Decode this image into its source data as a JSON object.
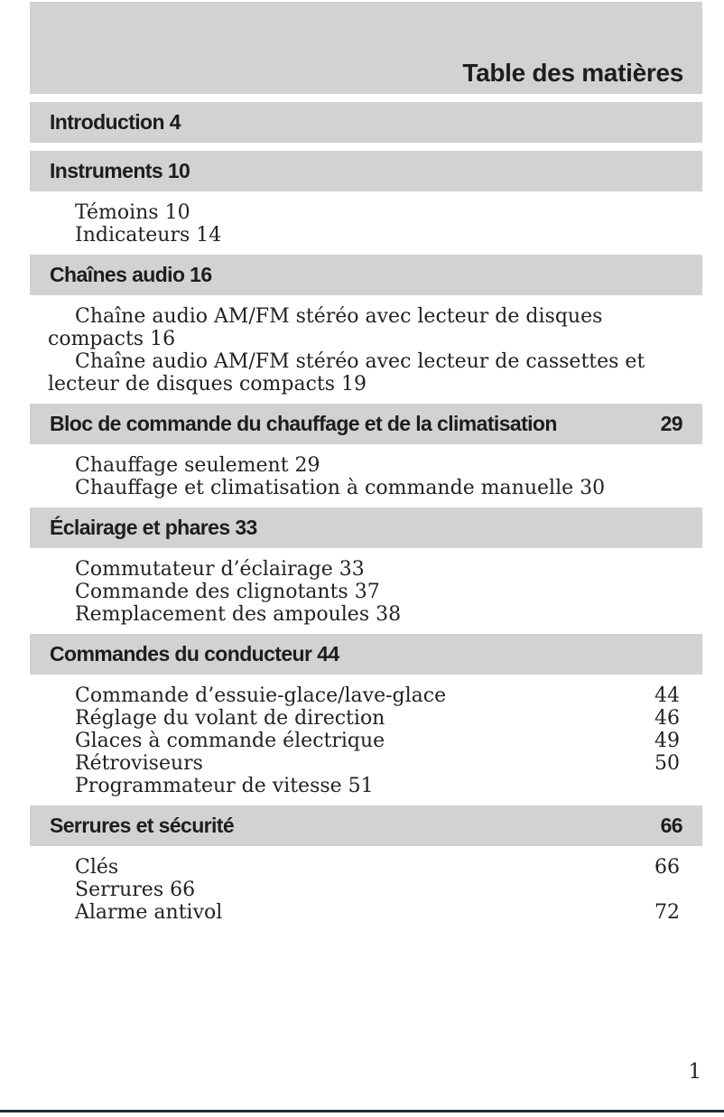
{
  "theme": {
    "bar_bg": "#d2d2d2",
    "ink": "#1d1d1b",
    "rule": "#262b33"
  },
  "toc": {
    "title": "Table des matières",
    "sections": [
      {
        "heading": {
          "text": "Introduction 4",
          "page": ""
        },
        "items": []
      },
      {
        "heading": {
          "text": "Instruments 10",
          "page": ""
        },
        "items": [
          {
            "type": "inline",
            "lines": [
              "Témoins 10"
            ]
          },
          {
            "type": "inline",
            "lines": [
              "Indicateurs 14"
            ]
          }
        ]
      },
      {
        "heading": {
          "text": "Chaînes audio 16",
          "page": ""
        },
        "items": [
          {
            "type": "inline",
            "lines": [
              "Chaîne audio AM/FM stéréo avec lecteur de disques",
              "compacts 16"
            ]
          },
          {
            "type": "inline",
            "lines": [
              "Chaîne audio AM/FM stéréo avec lecteur de cassettes et",
              "lecteur de disques compacts 19"
            ]
          }
        ]
      },
      {
        "heading": {
          "text": "Bloc de commande du chauffage et de la climatisation",
          "page": "29"
        },
        "items": [
          {
            "type": "inline",
            "lines": [
              "Chauffage seulement 29"
            ]
          },
          {
            "type": "inline",
            "lines": [
              "Chauffage et climatisation à commande manuelle 30"
            ]
          }
        ]
      },
      {
        "heading": {
          "text": "Éclairage et phares 33",
          "page": ""
        },
        "items": [
          {
            "type": "inline",
            "lines": [
              "Commutateur d’éclairage 33"
            ]
          },
          {
            "type": "inline",
            "lines": [
              "Commande des clignotants 37"
            ]
          },
          {
            "type": "inline",
            "lines": [
              "Remplacement des ampoules 38"
            ]
          }
        ]
      },
      {
        "heading": {
          "text": "Commandes du conducteur 44",
          "page": ""
        },
        "items": [
          {
            "type": "right",
            "label": "Commande d’essuie-glace/lave-glace",
            "page": "44"
          },
          {
            "type": "right",
            "label": "Réglage du volant de direction",
            "page": "46"
          },
          {
            "type": "right",
            "label": "Glaces à commande électrique",
            "page": "49"
          },
          {
            "type": "right",
            "label": "Rétroviseurs",
            "page": "50"
          },
          {
            "type": "inline",
            "lines": [
              "Programmateur de vitesse 51"
            ]
          }
        ]
      },
      {
        "heading": {
          "text": "Serrures et sécurité",
          "page": "66"
        },
        "items": [
          {
            "type": "right",
            "label": "Clés",
            "page": "66"
          },
          {
            "type": "inline",
            "lines": [
              "Serrures 66"
            ]
          },
          {
            "type": "right",
            "label": "Alarme antivol",
            "page": "72"
          }
        ]
      }
    ],
    "footer": {
      "page_number": "1"
    }
  }
}
